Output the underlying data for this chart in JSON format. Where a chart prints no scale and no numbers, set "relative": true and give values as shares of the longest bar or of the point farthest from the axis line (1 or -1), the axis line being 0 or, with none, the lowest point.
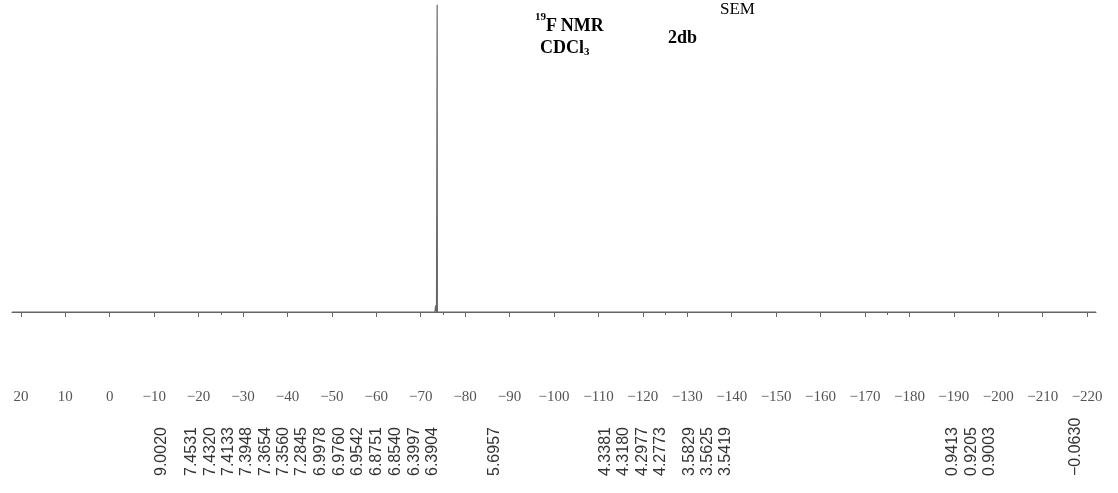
{
  "chart_data": {
    "type": "line",
    "relative": true,
    "title": "$^{19}$F NMR",
    "subtitle": "CDCl$_{3}$",
    "annotations": [
      "2db",
      "SEM",
      "9.0020",
      "7.4531",
      "7.4320",
      "7.4133",
      "7.3948",
      "7.3654",
      "7.3560",
      "7.2845",
      "6.9978",
      "6.9760",
      "6.9542",
      "6.8751",
      "6.8540",
      "6.3997",
      "6.3904",
      "5.6957",
      "4.3381",
      "4.3180",
      "4.2977",
      "4.2773",
      "3.5829",
      "3.5625",
      "3.5419",
      "0.9413",
      "0.9205",
      "0.9003",
      "−0.0630"
    ],
    "x": [
      22,
      -73.2,
      -73.35,
      -73.45,
      -73.55,
      -73.65,
      -73.7,
      -73.75,
      -73.85,
      -222
    ],
    "series": [
      {
        "color": "#666666",
        "values": [
          0,
          0,
          0.02,
          0.02,
          0,
          0,
          1,
          0,
          0,
          0
        ]
      }
    ],
    "xlim": [
      22,
      -222
    ],
    "xticks": [
      20,
      10,
      0,
      -10,
      -20,
      -30,
      -40,
      -50,
      -60,
      -70,
      -80,
      -90,
      -100,
      -110,
      -120,
      -130,
      -140,
      -150,
      -160,
      -170,
      -180,
      -190,
      -200,
      -210,
      -220
    ],
    "marker": "none",
    "line_style": "solid"
  }
}
